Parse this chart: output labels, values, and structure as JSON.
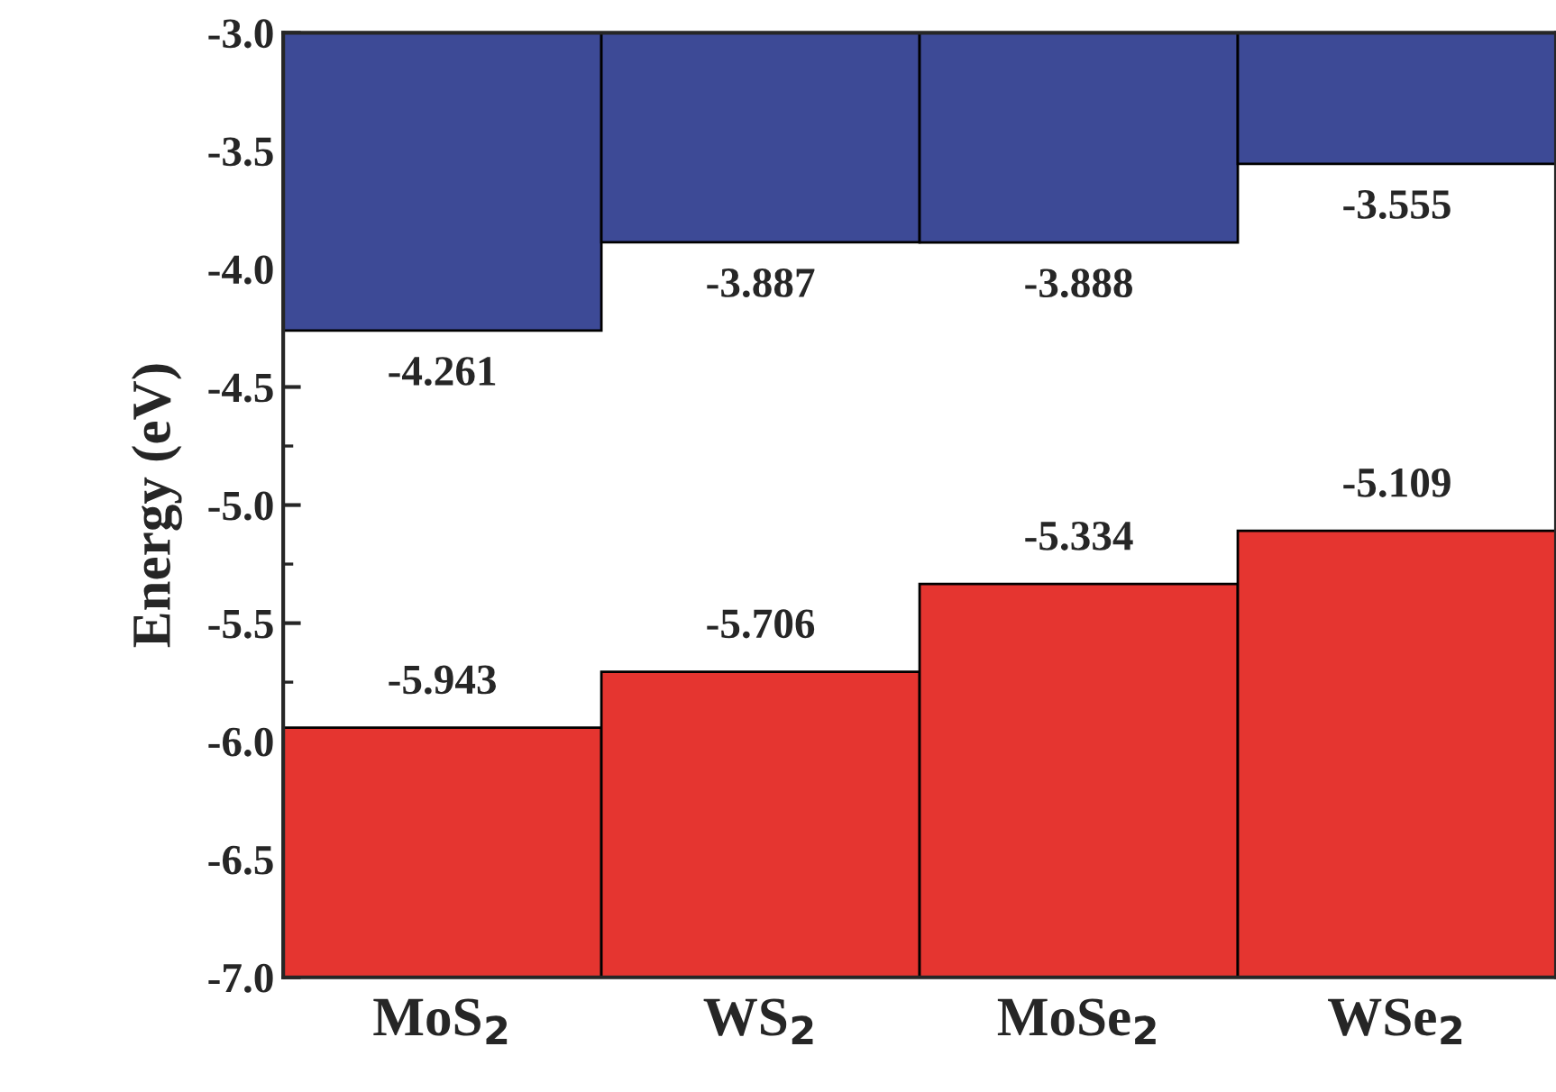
{
  "chart_data": {
    "type": "bar",
    "ylabel": "Energy (eV)",
    "categories": [
      "MoS$_{2}$",
      "WS$_{2}$",
      "MoSe$_{2}$",
      "WSe$_{2}$"
    ],
    "series": [
      {
        "color": "#3d4a96",
        "base": [
          -3.0,
          -3.0,
          -3.0,
          -3.0
        ],
        "values": [
          -1.261,
          -0.887,
          -0.888,
          -0.555
        ],
        "value_labels": [
          "-4.261",
          "-3.887",
          "-3.888",
          "-3.555"
        ]
      },
      {
        "color": "#e53530",
        "base": [
          -7.0,
          -7.0,
          -7.0,
          -7.0
        ],
        "values": [
          1.057,
          1.294,
          1.666,
          1.891
        ],
        "value_labels": [
          "-5.943",
          "-5.706",
          "-5.334",
          "-5.109"
        ]
      }
    ],
    "ylim": [
      -7.0,
      -3.0
    ],
    "yticks": [
      {
        "value": -7,
        "label": "-7.0"
      },
      -6.5,
      {
        "value": -6,
        "label": "-6.0"
      },
      -5.5,
      {
        "value": -5,
        "label": "-5.0"
      },
      -4.5,
      {
        "value": -4,
        "label": "-4.0"
      },
      -3.5,
      {
        "value": -3,
        "label": "-3.0"
      }
    ]
  }
}
